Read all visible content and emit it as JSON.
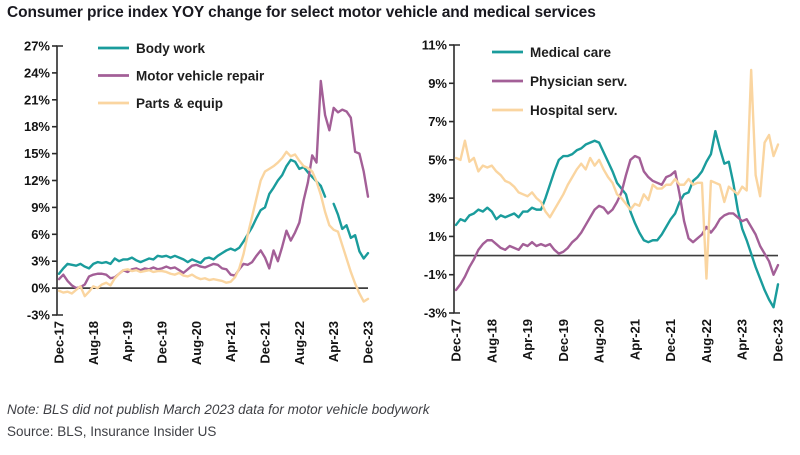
{
  "page": {
    "title": "Consumer price index YOY change for select motor vehicle and medical services",
    "note": "Note: BLS did not publish March 2023 data for motor vehicle bodywork",
    "source": "Source: BLS, Insurance Insider US"
  },
  "colors": {
    "teal": "#1A9C9C",
    "mauve": "#A35F97",
    "peach": "#FAD5A0",
    "axis": "#2B2B2B",
    "zero_line": "#3D3D3D",
    "tick_text": "#141414"
  },
  "chart_data": [
    {
      "type": "line",
      "id": "motor-vehicle",
      "title": "",
      "xlabel": "",
      "ylabel": "",
      "x_unit": "month",
      "x_start": "Dec-17",
      "x_end": "Dec-23",
      "n_points": 73,
      "ylim": [
        -3,
        27
      ],
      "y_tick_values": [
        27,
        24,
        21,
        18,
        15,
        12,
        9,
        6,
        3,
        0,
        -3
      ],
      "y_tick_labels": [
        "27%",
        "24%",
        "21%",
        "18%",
        "15%",
        "12%",
        "9%",
        "6%",
        "3%",
        "0%",
        "-3%"
      ],
      "x_tick_month_indices": [
        0,
        8,
        16,
        24,
        32,
        40,
        48,
        56,
        64,
        72
      ],
      "x_tick_labels": [
        "Dec-17",
        "Aug-18",
        "Apr-19",
        "Dec-19",
        "Aug-20",
        "Apr-21",
        "Dec-21",
        "Aug-22",
        "Apr-23",
        "Dec-23"
      ],
      "grid": false,
      "zero_line": true,
      "legend_position": "top-left",
      "series": [
        {
          "name": "Body work",
          "key": "body-work",
          "color": "teal",
          "values": [
            1.6,
            2.2,
            2.7,
            2.6,
            2.5,
            2.7,
            2.4,
            2.2,
            2.7,
            2.9,
            2.8,
            2.9,
            2.7,
            3.3,
            3.0,
            3.2,
            3.2,
            3.4,
            3.1,
            2.9,
            3.1,
            3.3,
            3.2,
            3.6,
            3.5,
            3.6,
            3.4,
            3.6,
            3.4,
            3.2,
            2.9,
            3.2,
            3.0,
            2.8,
            3.3,
            3.4,
            3.2,
            3.6,
            3.9,
            4.2,
            4.4,
            4.2,
            4.5,
            5.2,
            6.0,
            6.8,
            7.8,
            8.7,
            9.0,
            10.5,
            11.2,
            12.0,
            12.6,
            13.6,
            14.3,
            14.1,
            13.3,
            13.5,
            12.9,
            12.4,
            11.9,
            11.4,
            10.2,
            null,
            9.4,
            8.2,
            6.6,
            7.0,
            5.6,
            5.9,
            4.1,
            3.3,
            3.9
          ]
        },
        {
          "name": "Motor vehicle repair",
          "key": "motor-vehicle-repair",
          "color": "mauve",
          "values": [
            1.0,
            1.5,
            0.8,
            0.3,
            0.0,
            0.1,
            0.4,
            1.3,
            1.5,
            1.6,
            1.6,
            1.5,
            1.1,
            1.2,
            1.6,
            2.0,
            1.8,
            2.1,
            2.2,
            2.0,
            2.2,
            2.1,
            2.3,
            2.1,
            2.2,
            2.4,
            2.2,
            2.3,
            2.0,
            1.7,
            2.1,
            2.5,
            2.6,
            2.4,
            2.3,
            2.5,
            2.7,
            2.6,
            2.2,
            2.1,
            1.5,
            1.4,
            2.1,
            2.7,
            2.6,
            2.9,
            3.6,
            4.2,
            3.4,
            2.2,
            4.2,
            3.0,
            4.6,
            6.4,
            5.3,
            6.2,
            7.3,
            9.8,
            11.8,
            14.8,
            14.0,
            23.1,
            19.3,
            17.6,
            20.1,
            19.6,
            19.9,
            19.7,
            19.0,
            15.2,
            15.0,
            13.0,
            10.2
          ]
        },
        {
          "name": "Parts & equip",
          "key": "parts-equip",
          "color": "peach",
          "values": [
            -0.3,
            -0.5,
            -0.4,
            -0.6,
            -0.2,
            0.2,
            -0.9,
            -0.4,
            0.2,
            0.0,
            0.4,
            0.6,
            0.3,
            1.1,
            1.6,
            2.0,
            2.1,
            1.9,
            2.0,
            1.8,
            1.9,
            2.0,
            1.8,
            1.9,
            1.9,
            1.8,
            1.6,
            1.5,
            1.7,
            1.4,
            1.3,
            1.5,
            1.2,
            1.0,
            1.1,
            0.9,
            1.0,
            0.9,
            0.8,
            0.6,
            0.7,
            1.2,
            2.2,
            3.8,
            6.0,
            8.0,
            10.0,
            12.0,
            13.0,
            13.3,
            13.6,
            14.0,
            14.5,
            15.2,
            14.7,
            14.9,
            14.2,
            13.6,
            13.4,
            13.0,
            11.9,
            10.4,
            8.5,
            7.0,
            6.5,
            6.3,
            4.8,
            3.3,
            1.8,
            0.5,
            -0.6,
            -1.5,
            -1.2
          ]
        }
      ]
    },
    {
      "type": "line",
      "id": "medical",
      "title": "",
      "xlabel": "",
      "ylabel": "",
      "x_unit": "month",
      "x_start": "Dec-17",
      "x_end": "Dec-23",
      "n_points": 73,
      "ylim": [
        -3,
        11
      ],
      "y_tick_values": [
        11,
        9,
        7,
        5,
        3,
        1,
        -1,
        -3
      ],
      "y_tick_labels": [
        "11%",
        "9%",
        "7%",
        "5%",
        "3%",
        "1%",
        "-1%",
        "-3%"
      ],
      "x_tick_month_indices": [
        0,
        8,
        16,
        24,
        32,
        40,
        48,
        56,
        64,
        72
      ],
      "x_tick_labels": [
        "Dec-17",
        "Aug-18",
        "Apr-19",
        "Dec-19",
        "Aug-20",
        "Apr-21",
        "Dec-21",
        "Aug-22",
        "Apr-23",
        "Dec-23"
      ],
      "grid": false,
      "zero_line": true,
      "legend_position": "top-left",
      "series": [
        {
          "name": "Medical care",
          "key": "medical-care",
          "color": "teal",
          "values": [
            1.6,
            1.9,
            1.8,
            2.1,
            2.2,
            2.4,
            2.3,
            2.5,
            2.3,
            1.9,
            2.1,
            2.0,
            2.1,
            2.2,
            2.0,
            2.3,
            2.3,
            2.5,
            2.4,
            2.4,
            3.0,
            3.7,
            4.4,
            5.0,
            5.2,
            5.2,
            5.3,
            5.5,
            5.6,
            5.8,
            5.9,
            6.0,
            5.9,
            5.4,
            4.9,
            4.4,
            3.8,
            3.5,
            3.2,
            2.3,
            1.7,
            1.2,
            0.8,
            0.7,
            0.8,
            0.8,
            1.1,
            1.5,
            1.9,
            2.2,
            2.8,
            3.2,
            3.3,
            3.9,
            4.1,
            4.4,
            4.9,
            5.3,
            6.5,
            5.6,
            4.8,
            4.9,
            3.8,
            2.4,
            1.4,
            0.8,
            0.1,
            -0.6,
            -1.2,
            -1.8,
            -2.3,
            -2.7,
            -1.5
          ]
        },
        {
          "name": "Physician serv.",
          "key": "physician-serv",
          "color": "mauve",
          "values": [
            -1.8,
            -1.5,
            -1.1,
            -0.6,
            -0.2,
            0.3,
            0.6,
            0.8,
            0.8,
            0.6,
            0.4,
            0.3,
            0.5,
            0.4,
            0.3,
            0.6,
            0.5,
            0.7,
            0.5,
            0.6,
            0.5,
            0.6,
            0.3,
            0.1,
            0.2,
            0.4,
            0.7,
            0.9,
            1.2,
            1.6,
            2.0,
            2.4,
            2.6,
            2.5,
            2.2,
            2.4,
            2.8,
            3.3,
            4.2,
            5.0,
            5.2,
            5.1,
            4.4,
            4.1,
            3.9,
            3.8,
            3.7,
            4.1,
            4.2,
            4.4,
            3.2,
            1.8,
            0.9,
            0.7,
            0.9,
            1.1,
            1.5,
            1.2,
            1.5,
            1.9,
            2.1,
            2.2,
            2.2,
            2.0,
            1.8,
            1.9,
            1.5,
            1.1,
            0.5,
            0.1,
            -0.3,
            -1.0,
            -0.5
          ]
        },
        {
          "name": "Hospital serv.",
          "key": "hospital-serv",
          "color": "peach",
          "values": [
            5.1,
            5.0,
            6.0,
            4.9,
            5.1,
            4.4,
            4.7,
            4.6,
            4.7,
            4.4,
            4.2,
            3.9,
            3.8,
            3.6,
            3.3,
            3.2,
            3.1,
            3.3,
            3.0,
            2.8,
            2.3,
            2.0,
            2.4,
            2.8,
            3.2,
            3.7,
            4.1,
            4.5,
            4.8,
            4.5,
            5.1,
            4.7,
            5.0,
            4.5,
            4.1,
            3.8,
            3.2,
            3.0,
            2.7,
            2.4,
            2.7,
            2.6,
            3.2,
            2.9,
            3.7,
            3.5,
            3.5,
            3.7,
            3.7,
            4.0,
            3.7,
            3.7,
            4.0,
            3.7,
            3.8,
            3.8,
            -1.2,
            3.9,
            3.8,
            3.7,
            2.8,
            3.6,
            3.4,
            3.2,
            3.6,
            3.4,
            9.7,
            4.2,
            3.1,
            5.9,
            6.3,
            5.2,
            5.8
          ]
        }
      ]
    }
  ]
}
